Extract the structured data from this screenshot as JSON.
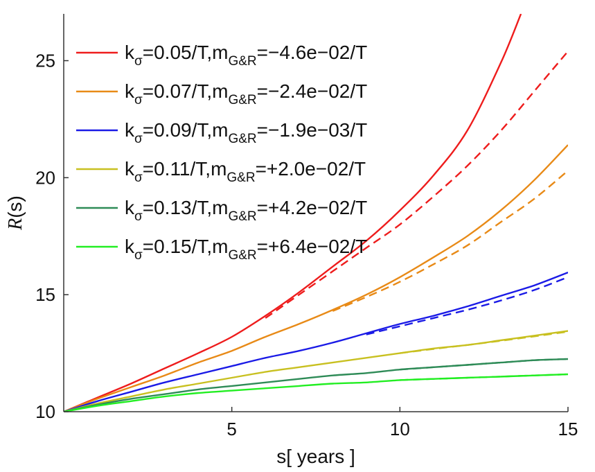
{
  "chart_data": {
    "type": "line",
    "xlabel": "s[ years ]",
    "ylabel_main": "R",
    "ylabel_suffix": "(s)",
    "xlim": [
      0,
      15
    ],
    "ylim": [
      10,
      27
    ],
    "xticks": [
      5,
      10,
      15
    ],
    "yticks": [
      10,
      15,
      20,
      25
    ],
    "grid": false,
    "legend_position": "top-left",
    "series": [
      {
        "name": "kσ=0.05/T,mG&R=−4.6e−02/T",
        "k_value": "0.05/T",
        "m_value": "−4.6e−02/T",
        "color": "#ee1c1c",
        "solid": {
          "x": [
            0,
            1,
            2,
            3,
            4,
            5,
            6,
            7,
            8,
            9,
            10,
            11,
            12,
            13,
            13.6
          ],
          "y": [
            10,
            10.6,
            11.2,
            11.85,
            12.5,
            13.2,
            14.1,
            15.1,
            16.2,
            17.3,
            18.6,
            20.1,
            22.0,
            24.9,
            27.0
          ]
        },
        "dashed": {
          "x": [
            6,
            7,
            8,
            9,
            10,
            11,
            12,
            13,
            14,
            15
          ],
          "y": [
            14.0,
            15.0,
            16.0,
            17.0,
            18.0,
            19.2,
            20.5,
            22.0,
            23.7,
            25.4
          ]
        }
      },
      {
        "name": "kσ=0.07/T,mG&R=−2.4e−02/T",
        "k_value": "0.07/T",
        "m_value": "−2.4e−02/T",
        "color": "#e88a17",
        "solid": {
          "x": [
            0,
            1,
            2,
            3,
            4,
            5,
            6,
            7,
            8,
            9,
            10,
            11,
            12,
            13,
            14,
            15
          ],
          "y": [
            10,
            10.55,
            11.05,
            11.55,
            12.1,
            12.6,
            13.2,
            13.75,
            14.35,
            15.0,
            15.75,
            16.6,
            17.5,
            18.6,
            19.9,
            21.4
          ]
        },
        "dashed": {
          "x": [
            8,
            9,
            10,
            11,
            12,
            13,
            14,
            15
          ],
          "y": [
            14.3,
            14.9,
            15.55,
            16.3,
            17.1,
            18.1,
            19.1,
            20.3
          ]
        }
      },
      {
        "name": "kσ=0.09/T,mG&R=−1.9e−03/T",
        "k_value": "0.09/T",
        "m_value": "−1.9e−03/T",
        "color": "#1a1ae6",
        "solid": {
          "x": [
            0,
            1,
            2,
            3,
            4,
            5,
            6,
            7,
            8,
            9,
            10,
            11,
            12,
            13,
            14,
            15
          ],
          "y": [
            10,
            10.45,
            10.85,
            11.25,
            11.6,
            11.95,
            12.3,
            12.6,
            12.95,
            13.35,
            13.75,
            14.1,
            14.5,
            14.95,
            15.4,
            15.95
          ]
        },
        "dashed": {
          "x": [
            9,
            10,
            11,
            12,
            13,
            14,
            15
          ],
          "y": [
            13.3,
            13.65,
            14.0,
            14.35,
            14.75,
            15.2,
            15.75
          ]
        }
      },
      {
        "name": "kσ=0.11/T,mG&R=+2.0e−02/T",
        "k_value": "0.11/T",
        "m_value": "+2.0e−02/T",
        "color": "#c8c020",
        "solid": {
          "x": [
            0,
            1,
            2,
            3,
            4,
            5,
            6,
            7,
            8,
            9,
            10,
            11,
            12,
            13,
            14,
            15
          ],
          "y": [
            10,
            10.35,
            10.65,
            10.95,
            11.2,
            11.45,
            11.7,
            11.9,
            12.1,
            12.3,
            12.5,
            12.7,
            12.85,
            13.05,
            13.25,
            13.45
          ]
        },
        "dashed": {
          "x": [
            10,
            11,
            12,
            13,
            14,
            15
          ],
          "y": [
            12.5,
            12.68,
            12.85,
            13.03,
            13.22,
            13.42
          ]
        }
      },
      {
        "name": "kσ=0.13/T,mG&R=+4.2e−02/T",
        "k_value": "0.13/T",
        "m_value": "+4.2e−02/T",
        "color": "#2e8b57",
        "solid": {
          "x": [
            0,
            1,
            2,
            3,
            4,
            5,
            6,
            7,
            8,
            9,
            10,
            11,
            12,
            13,
            14,
            15
          ],
          "y": [
            10,
            10.3,
            10.55,
            10.75,
            10.95,
            11.1,
            11.25,
            11.4,
            11.55,
            11.65,
            11.8,
            11.9,
            12.0,
            12.1,
            12.2,
            12.25
          ]
        },
        "dashed": {
          "x": [
            10,
            11,
            12,
            13,
            14,
            15
          ],
          "y": [
            11.8,
            11.9,
            12.0,
            12.1,
            12.2,
            12.25
          ]
        }
      },
      {
        "name": "kσ=0.15/T,mG&R=+6.4e−02/T",
        "k_value": "0.15/T",
        "m_value": "+6.4e−02/T",
        "color": "#22ee22",
        "solid": {
          "x": [
            0,
            1,
            2,
            3,
            4,
            5,
            6,
            7,
            8,
            9,
            10,
            11,
            12,
            13,
            14,
            15
          ],
          "y": [
            10,
            10.25,
            10.45,
            10.65,
            10.8,
            10.9,
            11.0,
            11.1,
            11.2,
            11.25,
            11.35,
            11.4,
            11.45,
            11.5,
            11.55,
            11.6
          ]
        },
        "dashed": {
          "x": [
            10,
            11,
            12,
            13,
            14,
            15
          ],
          "y": [
            11.35,
            11.4,
            11.45,
            11.5,
            11.55,
            11.6
          ]
        }
      }
    ],
    "legend_labels": {
      "k_prefix": "k",
      "k_sub": "σ",
      "m_prefix": "m",
      "m_sub": "G&R",
      "equals": "="
    }
  }
}
